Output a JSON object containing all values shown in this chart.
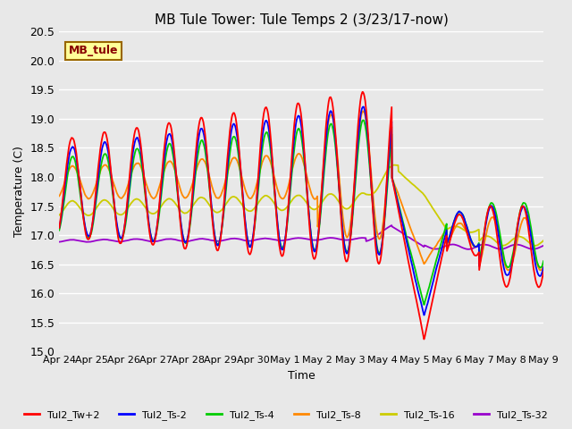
{
  "title": "MB Tule Tower: Tule Temps 2 (3/23/17-now)",
  "ylabel": "Temperature (C)",
  "xlabel": "Time",
  "ylim": [
    15.0,
    20.5
  ],
  "yticks": [
    15.0,
    15.5,
    16.0,
    16.5,
    17.0,
    17.5,
    18.0,
    18.5,
    19.0,
    19.5,
    20.0,
    20.5
  ],
  "xtick_labels": [
    "Apr 24",
    "Apr 25",
    "Apr 26",
    "Apr 27",
    "Apr 28",
    "Apr 29",
    "Apr 30",
    "May 1",
    "May 2",
    "May 3",
    "May 4",
    "May 5",
    "May 6",
    "May 7",
    "May 8",
    "May 9"
  ],
  "bg_color": "#e8e8e8",
  "plot_bg_color": "#e8e8e8",
  "grid_color": "#ffffff",
  "series_colors": {
    "Tul2_Tw+2": "#ff0000",
    "Tul2_Ts-2": "#0000ff",
    "Tul2_Ts-4": "#00cc00",
    "Tul2_Ts-8": "#ff8800",
    "Tul2_Ts-16": "#cccc00",
    "Tul2_Ts-32": "#9900cc"
  },
  "legend_label": "MB_tule",
  "legend_box_color": "#ffff99",
  "legend_box_edge": "#996600"
}
